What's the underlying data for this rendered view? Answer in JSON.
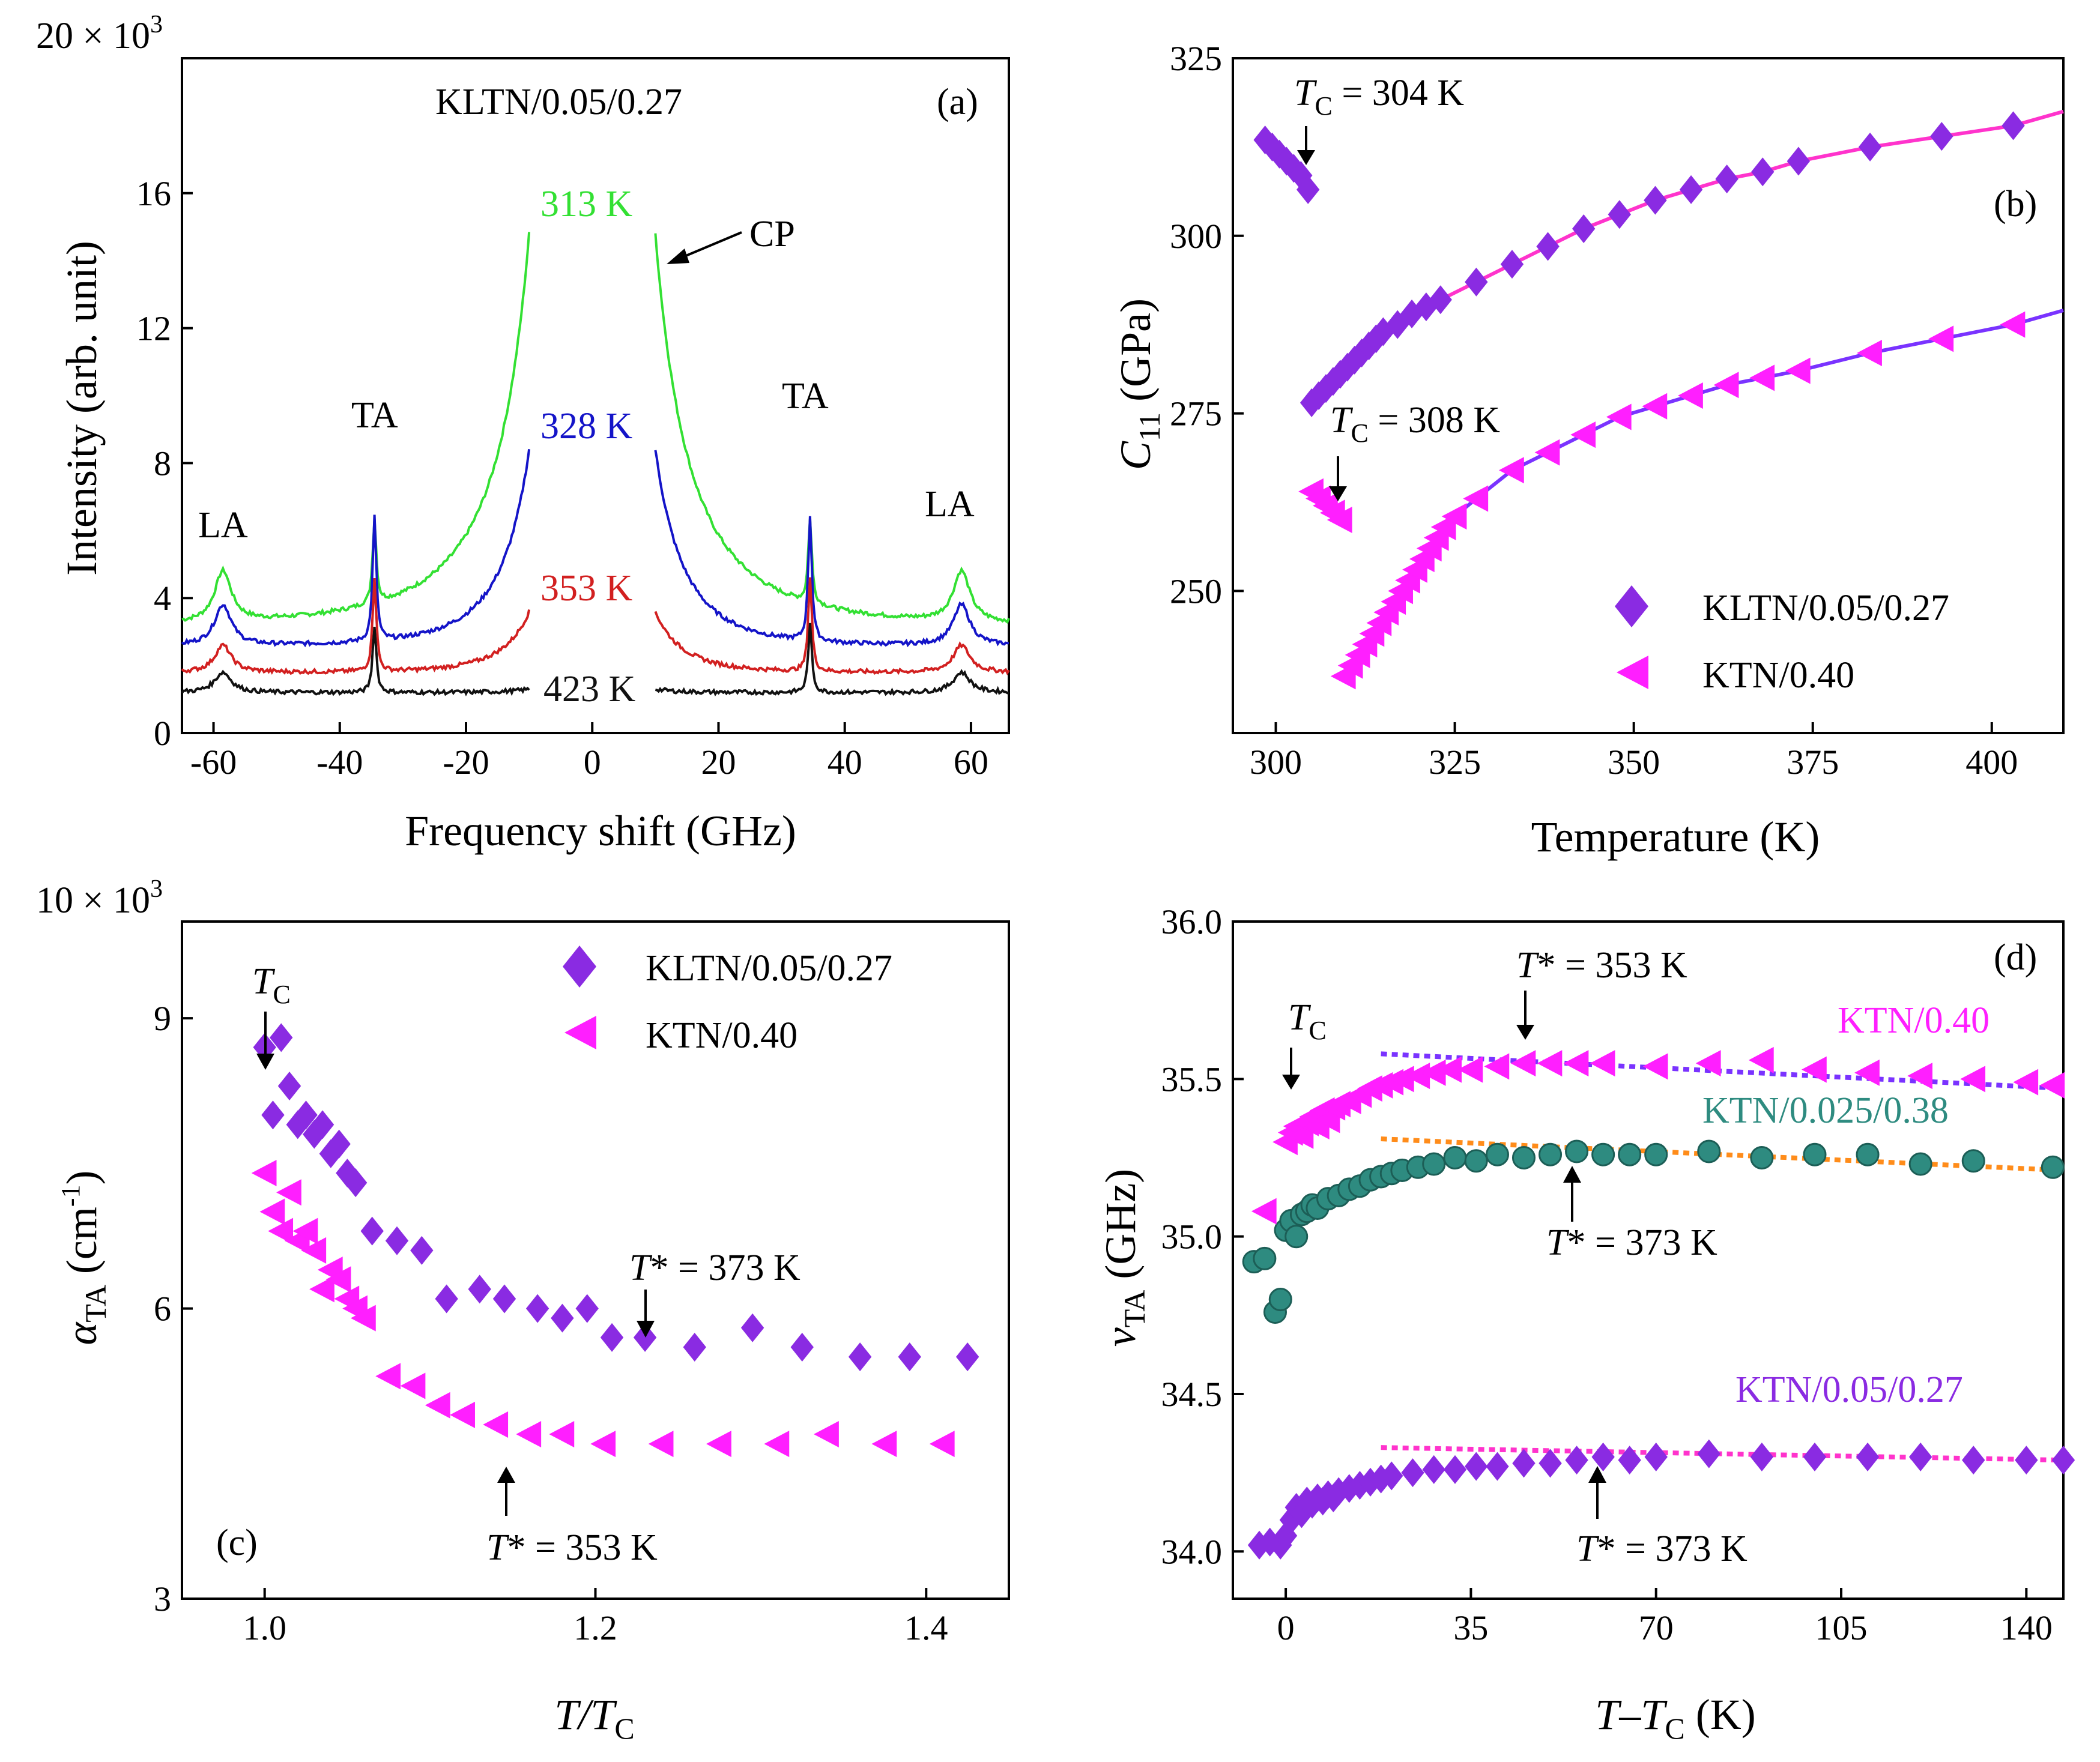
{
  "colors": {
    "green": "#33e033",
    "blue": "#1414c8",
    "red": "#d22020",
    "black": "#111111",
    "purple": "#8a2be2",
    "magenta": "#ff1fff",
    "teal": "#2e8b80",
    "orange": "#ff8c1a",
    "fit_a": "#ff33cc",
    "fit_b": "#7a33ff"
  },
  "chart_data": [
    {
      "panel": "(a)",
      "type": "line",
      "title": "KLTN/0.05/0.27",
      "xlabel": "Frequency shift (GHz)",
      "ylabel": "Intensity (arb. unit)",
      "ymult": "20 × 10",
      "ymult_exp": "3",
      "xlim": [
        -65,
        66
      ],
      "ylim": [
        0,
        20
      ],
      "xticks": [
        -60,
        -40,
        -20,
        0,
        20,
        40,
        60
      ],
      "xtick_labels": [
        "-60",
        "-40",
        "-20",
        "0",
        "20",
        "40",
        "60"
      ],
      "yticks": [
        0,
        4,
        8,
        12,
        16
      ],
      "ytick_labels": [
        "0",
        "4",
        "8",
        "12",
        "16"
      ],
      "series": [
        {
          "name": "313 K",
          "base": 3.2,
          "la": 1.5,
          "ta": 2.5,
          "cp": 11.6,
          "w": 28
        },
        {
          "name": "328 K",
          "base": 2.6,
          "la": 1.2,
          "ta": 3.7,
          "cp": 5.8,
          "w": 14
        },
        {
          "name": "353 K",
          "base": 1.8,
          "la": 0.8,
          "ta": 2.8,
          "cp": 1.8,
          "w": 12
        },
        {
          "name": "423 K",
          "base": 1.2,
          "la": 0.6,
          "ta": 2.0,
          "cp": 0.1,
          "w": 8
        }
      ],
      "peaks": {
        "la_pos": 58.5,
        "ta_pos": 34.5,
        "gap": 10
      },
      "annotations": [
        "TA",
        "TA",
        "LA",
        "LA",
        "CP"
      ]
    },
    {
      "panel": "(b)",
      "type": "scatter",
      "xlabel": "Temperature (K)",
      "ylabel": "C",
      "ylabel_sub": "11",
      "ylabel_unit": " (GPa)",
      "xlim": [
        294,
        410
      ],
      "ylim": [
        230,
        325
      ],
      "xticks": [
        300,
        325,
        350,
        375,
        400
      ],
      "xtick_labels": [
        "300",
        "325",
        "350",
        "375",
        "400"
      ],
      "yticks": [
        250,
        275,
        300,
        325
      ],
      "ytick_labels": [
        "250",
        "275",
        "300",
        "325"
      ],
      "series": [
        {
          "name": "KLTN/0.05/0.27",
          "marker": "diamond",
          "x": [
            298.5,
            299.5,
            300.5,
            301.5,
            302.5,
            303.5,
            304.5,
            305,
            306,
            307,
            308,
            309,
            310,
            311,
            312,
            313,
            314,
            315,
            317,
            319,
            321,
            323,
            328,
            333,
            338,
            343,
            348,
            353,
            358,
            363,
            368,
            373,
            383,
            393,
            403
          ],
          "y": [
            313.5,
            312.5,
            311.5,
            310.5,
            309.5,
            308.5,
            306.5,
            276.5,
            277.5,
            278.5,
            279.5,
            280.5,
            281.5,
            282.5,
            283.5,
            284.5,
            285.5,
            286.5,
            287.5,
            289,
            290,
            291,
            293.5,
            296,
            298.5,
            301,
            303,
            305,
            306.5,
            308,
            309,
            310.5,
            312.5,
            314,
            315.5
          ]
        },
        {
          "name": "KTN/0.40",
          "marker": "triangle-left",
          "x": [
            305,
            306,
            307,
            308,
            309,
            309.5,
            310.5,
            311.5,
            312.5,
            313.5,
            314.5,
            315.5,
            316.5,
            317.5,
            318.5,
            319.5,
            320.5,
            321.5,
            322.5,
            323.5,
            325,
            328,
            333,
            338,
            343,
            348,
            353,
            358,
            363,
            368,
            373,
            383,
            393,
            403
          ],
          "y": [
            264,
            263,
            262,
            261,
            260,
            238,
            239.5,
            241,
            242.5,
            244,
            245.5,
            247,
            248.5,
            250,
            251.5,
            253,
            254.5,
            256,
            257.5,
            259,
            260.5,
            263,
            267,
            269.5,
            272,
            274.5,
            276,
            277.5,
            279,
            280,
            281,
            283.5,
            285.5,
            287.5
          ]
        }
      ],
      "fit_upper": "log",
      "annotations": {
        "tc1": "T",
        "tc1_sub": "C",
        "tc1_val": " = 304 K",
        "tc2": "T",
        "tc2_sub": "C",
        "tc2_val": " = 308 K"
      }
    },
    {
      "panel": "(c)",
      "type": "scatter",
      "xlabel": "T/T",
      "xlabel_sub": "C",
      "ylabel": "α",
      "ylabel_sub": "TA",
      "ylabel_unit": " (cm",
      "ylabel_sup": "-1",
      "ylabel_close": ")",
      "ymult": "10 × 10",
      "ymult_exp": "3",
      "xlim": [
        0.95,
        1.45
      ],
      "ylim": [
        3,
        10
      ],
      "xticks": [
        1.0,
        1.2,
        1.4
      ],
      "xtick_labels": [
        "1.0",
        "1.2",
        "1.4"
      ],
      "yticks": [
        3,
        6,
        9
      ],
      "ytick_labels": [
        "3",
        "6",
        "9"
      ],
      "series": [
        {
          "name": "KLTN/0.05/0.27",
          "marker": "diamond",
          "x": [
            1.0,
            1.005,
            1.01,
            1.015,
            1.02,
            1.025,
            1.03,
            1.035,
            1.04,
            1.045,
            1.05,
            1.055,
            1.065,
            1.08,
            1.095,
            1.11,
            1.13,
            1.145,
            1.165,
            1.18,
            1.195,
            1.21,
            1.23,
            1.26,
            1.295,
            1.325,
            1.36,
            1.39,
            1.425
          ],
          "y": [
            8.7,
            8.0,
            8.8,
            8.3,
            7.9,
            8.0,
            7.8,
            7.9,
            7.6,
            7.7,
            7.4,
            7.3,
            6.8,
            6.7,
            6.6,
            6.1,
            6.2,
            6.1,
            6.0,
            5.9,
            6.0,
            5.7,
            5.7,
            5.6,
            5.8,
            5.6,
            5.5,
            5.5,
            5.5
          ]
        },
        {
          "name": "KTN/0.40",
          "marker": "triangle-left",
          "x": [
            1.0,
            1.005,
            1.01,
            1.015,
            1.02,
            1.025,
            1.03,
            1.035,
            1.04,
            1.045,
            1.05,
            1.055,
            1.06,
            1.075,
            1.09,
            1.105,
            1.12,
            1.14,
            1.16,
            1.18,
            1.205,
            1.24,
            1.275,
            1.31,
            1.34,
            1.375,
            1.41
          ],
          "y": [
            7.4,
            7.0,
            6.8,
            7.2,
            6.7,
            6.8,
            6.6,
            6.2,
            6.4,
            6.3,
            6.1,
            6.0,
            5.9,
            5.3,
            5.2,
            5.0,
            4.9,
            4.8,
            4.7,
            4.7,
            4.6,
            4.6,
            4.6,
            4.6,
            4.7,
            4.6,
            4.6
          ]
        }
      ],
      "legend": [
        "KLTN/0.05/0.27",
        "KTN/0.40"
      ],
      "annotations": {
        "tc": "T",
        "tc_sub": "C",
        "tstar1": "T",
        "tstar1_val": "* = 373 K",
        "tstar2": "T",
        "tstar2_val": "* = 353 K"
      }
    },
    {
      "panel": "(d)",
      "type": "scatter",
      "xlabel": "T–T",
      "xlabel_sub": "C",
      "xlabel_unit": " (K)",
      "ylabel": "ν",
      "ylabel_sub": "TA",
      "ylabel_unit": " (GHz)",
      "xlim": [
        -10,
        147
      ],
      "ylim": [
        33.85,
        36.0
      ],
      "xticks": [
        0,
        35,
        70,
        105,
        140
      ],
      "xtick_labels": [
        "0",
        "35",
        "70",
        "105",
        "140"
      ],
      "yticks": [
        34.0,
        34.5,
        35.0,
        35.5,
        36.0
      ],
      "ytick_labels": [
        "34.0",
        "34.5",
        "35.0",
        "35.5",
        "36.0"
      ],
      "series": [
        {
          "name": "KTN/0.40",
          "marker": "triangle-left",
          "x": [
            -4,
            0,
            1,
            2,
            3,
            4,
            5,
            6,
            7,
            8,
            9,
            10,
            12,
            14,
            16,
            18,
            20,
            22,
            25,
            28,
            31,
            35,
            40,
            45,
            50,
            55,
            60,
            70,
            80,
            90,
            100,
            110,
            120,
            130,
            140,
            145
          ],
          "y": [
            35.08,
            35.3,
            35.33,
            35.35,
            35.32,
            35.36,
            35.38,
            35.35,
            35.4,
            35.37,
            35.41,
            35.42,
            35.43,
            35.45,
            35.47,
            35.48,
            35.49,
            35.5,
            35.51,
            35.52,
            35.53,
            35.53,
            35.54,
            35.55,
            35.55,
            35.55,
            35.55,
            35.54,
            35.55,
            35.56,
            35.53,
            35.52,
            35.51,
            35.5,
            35.49,
            35.48
          ]
        },
        {
          "name": "KTN/0.025/0.38",
          "marker": "circle",
          "x": [
            -6,
            -4,
            -2,
            -1,
            0,
            1,
            2,
            3,
            4,
            5,
            6,
            8,
            10,
            12,
            14,
            16,
            18,
            20,
            22,
            25,
            28,
            32,
            36,
            40,
            45,
            50,
            55,
            60,
            65,
            70,
            80,
            90,
            100,
            110,
            120,
            130,
            145
          ],
          "y": [
            34.92,
            34.93,
            34.76,
            34.8,
            35.02,
            35.05,
            35.0,
            35.07,
            35.08,
            35.1,
            35.09,
            35.12,
            35.13,
            35.15,
            35.16,
            35.18,
            35.19,
            35.2,
            35.21,
            35.22,
            35.23,
            35.25,
            35.24,
            35.26,
            35.25,
            35.26,
            35.27,
            35.26,
            35.26,
            35.26,
            35.27,
            35.25,
            35.26,
            35.26,
            35.23,
            35.24,
            35.22
          ]
        },
        {
          "name": "KTN/0.05/0.27",
          "marker": "diamond",
          "x": [
            -5,
            -3,
            -1,
            0,
            1,
            2,
            3,
            4,
            5,
            6,
            7,
            8,
            9,
            10,
            12,
            14,
            16,
            18,
            20,
            24,
            28,
            32,
            36,
            40,
            45,
            50,
            55,
            60,
            65,
            70,
            80,
            90,
            100,
            110,
            120,
            130,
            140,
            147
          ],
          "y": [
            34.02,
            34.03,
            34.02,
            34.05,
            34.1,
            34.14,
            34.12,
            34.16,
            34.15,
            34.17,
            34.16,
            34.18,
            34.17,
            34.19,
            34.2,
            34.21,
            34.22,
            34.23,
            34.24,
            34.25,
            34.26,
            34.26,
            34.27,
            34.27,
            34.28,
            34.28,
            34.29,
            34.3,
            34.29,
            34.3,
            34.31,
            34.3,
            34.3,
            34.3,
            34.3,
            34.29,
            34.29,
            34.29
          ]
        }
      ],
      "labels": [
        "KTN/0.40",
        "KTN/0.025/0.38",
        "KTN/0.05/0.27"
      ],
      "annotations": {
        "tc": "T",
        "tc_sub": "C",
        "ts1": "T",
        "ts1_val": "* = 353 K",
        "ts2": "T",
        "ts2_val": "* = 373 K",
        "ts3": "T",
        "ts3_val": "* = 373 K"
      }
    }
  ]
}
